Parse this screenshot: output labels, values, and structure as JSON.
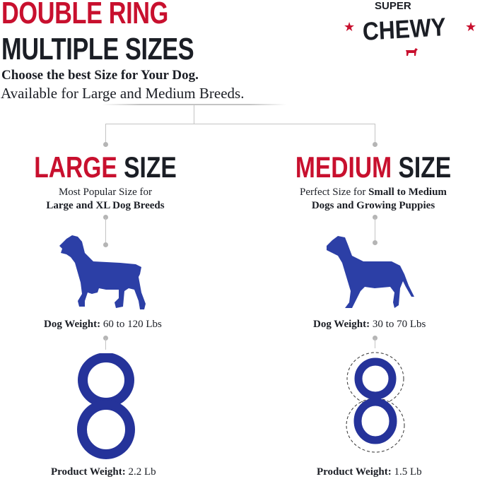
{
  "header": {
    "title_line1": "DOUBLE RING",
    "title_line2": "MULTIPLE SIZES",
    "subtitle": "Choose the best Size for Your Dog.",
    "availability": "Available for Large and Medium Breeds."
  },
  "logo": {
    "top": "SUPER",
    "main": "CHEWY"
  },
  "colors": {
    "red": "#c8102e",
    "dark": "#1b1e25",
    "blue": "#2c3fa6"
  },
  "sizes": [
    {
      "name_red": "LARGE",
      "name_dark": "SIZE",
      "desc_line1": "Most Popular Size for",
      "desc_line2": "Large and XL Dog Breeds",
      "dog_weight_label": "Dog Weight:",
      "dog_weight_value": "60 to 120 Lbs",
      "product_weight_label": "Product Weight:",
      "product_weight_value": "2.2 Lb"
    },
    {
      "name_red": "MEDIUM",
      "name_dark": "SIZE",
      "desc_line1_plain": "Perfect Size for",
      "desc_line1_bold": "Small to Medium",
      "desc_line2": "Dogs and Growing Puppies",
      "dog_weight_label": "Dog Weight:",
      "dog_weight_value": "30 to 70 Lbs",
      "product_weight_label": "Product Weight:",
      "product_weight_value": "1.5 Lb"
    }
  ]
}
